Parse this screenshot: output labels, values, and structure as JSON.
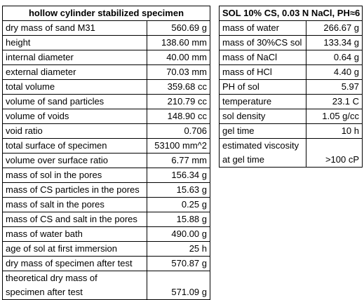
{
  "left_table": {
    "title": "hollow cylinder stabilized specimen",
    "rows": [
      {
        "label": "dry mass of sand M31",
        "value": "560.69 g"
      },
      {
        "label": "height",
        "value": "138.60 mm"
      },
      {
        "label": "internal diameter",
        "value": "40.00 mm"
      },
      {
        "label": "external diameter",
        "value": "70.03 mm"
      },
      {
        "label": "total volume",
        "value": "359.68 cc"
      },
      {
        "label": "volume of sand particles",
        "value": "210.79 cc"
      },
      {
        "label": "volume  of voids",
        "value": "148.90 cc"
      },
      {
        "label": "void ratio",
        "value": "0.706"
      },
      {
        "label": "total surface of specimen",
        "value": "53100 mm^2"
      },
      {
        "label": "volume over surface ratio",
        "value": "6.77 mm"
      },
      {
        "label": "mass of sol in the pores",
        "value": "156.34 g"
      },
      {
        "label": "mass of CS particles in the pores",
        "value": "15.63 g"
      },
      {
        "label": "mass of salt in the pores",
        "value": "0.25 g"
      },
      {
        "label": "mass of CS and salt in the pores",
        "value": "15.88 g"
      },
      {
        "label": "mass of water bath",
        "value": "490.00 g"
      },
      {
        "label": "age of sol at first immersion",
        "value": "25 h"
      },
      {
        "label": "dry mass of specimen after test",
        "value": "570.87 g"
      }
    ],
    "last_row": {
      "label_line1": "theoretical dry mass of",
      "label_line2": "specimen after test",
      "value": "571.09 g"
    }
  },
  "right_table": {
    "title": "SOL 10% CS, 0.03 N NaCl, PH≈6",
    "rows": [
      {
        "label": "mass of water",
        "value": "266.67 g"
      },
      {
        "label": "mass of 30%CS sol",
        "value": "133.34 g"
      },
      {
        "label": "mass of NaCl",
        "value": "0.64 g"
      },
      {
        "label": "mass of HCl",
        "value": "4.40 g"
      },
      {
        "label": "PH of sol",
        "value": "5.97"
      },
      {
        "label": "temperature",
        "value": "23.1 C"
      },
      {
        "label": "sol density",
        "value": "1.05 g/cc"
      },
      {
        "label": "gel time",
        "value": "10 h"
      }
    ],
    "last_row": {
      "label_line1": "estimated viscosity",
      "label_line2": "at gel time",
      "value": ">100 cP"
    }
  }
}
